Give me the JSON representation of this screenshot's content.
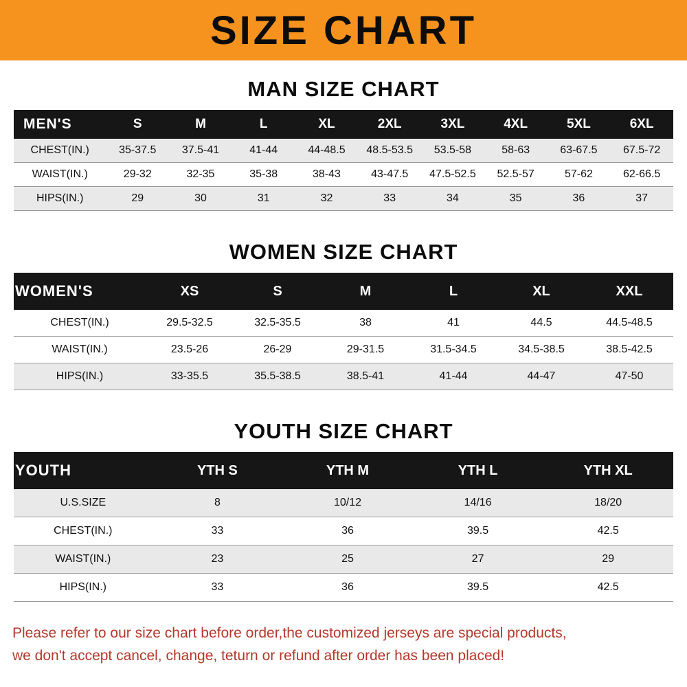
{
  "banner": {
    "title": "SIZE CHART"
  },
  "colors": {
    "banner_bg": "#f6921e",
    "header_bg": "#161616",
    "row_gray": "#e9e9e9",
    "footer_red": "#b4382b"
  },
  "chart_data": [
    {
      "type": "table",
      "id": "men",
      "title": "MAN SIZE CHART",
      "header": [
        "MEN'S",
        "S",
        "M",
        "L",
        "XL",
        "2XL",
        "3XL",
        "4XL",
        "5XL",
        "6XL"
      ],
      "rows": [
        [
          "CHEST(IN.)",
          "35-37.5",
          "37.5-41",
          "41-44",
          "44-48.5",
          "48.5-53.5",
          "53.5-58",
          "58-63",
          "63-67.5",
          "67.5-72"
        ],
        [
          "WAIST(IN.)",
          "29-32",
          "32-35",
          "35-38",
          "38-43",
          "43-47.5",
          "47.5-52.5",
          "52.5-57",
          "57-62",
          "62-66.5"
        ],
        [
          "HIPS(IN.)",
          "29",
          "30",
          "31",
          "32",
          "33",
          "34",
          "35",
          "36",
          "37"
        ]
      ]
    },
    {
      "type": "table",
      "id": "women",
      "title": "WOMEN SIZE CHART",
      "header": [
        "WOMEN'S",
        "XS",
        "S",
        "M",
        "L",
        "XL",
        "XXL"
      ],
      "rows": [
        [
          "CHEST(IN.)",
          "29.5-32.5",
          "32.5-35.5",
          "38",
          "41",
          "44.5",
          "44.5-48.5"
        ],
        [
          "WAIST(IN.)",
          "23.5-26",
          "26-29",
          "29-31.5",
          "31.5-34.5",
          "34.5-38.5",
          "38.5-42.5"
        ],
        [
          "HIPS(IN.)",
          "33-35.5",
          "35.5-38.5",
          "38.5-41",
          "41-44",
          "44-47",
          "47-50"
        ]
      ]
    },
    {
      "type": "table",
      "id": "youth",
      "title": "YOUTH SIZE CHART",
      "header": [
        "YOUTH",
        "YTH S",
        "YTH M",
        "YTH L",
        "YTH XL"
      ],
      "rows": [
        [
          "U.S.SIZE",
          "8",
          "10/12",
          "14/16",
          "18/20"
        ],
        [
          "CHEST(IN.)",
          "33",
          "36",
          "39.5",
          "42.5"
        ],
        [
          "WAIST(IN.)",
          "23",
          "25",
          "27",
          "29"
        ],
        [
          "HIPS(IN.)",
          "33",
          "36",
          "39.5",
          "42.5"
        ]
      ]
    }
  ],
  "footer": {
    "lines": [
      "Please refer to our size chart before order,the customized jerseys are special products,",
      "we don't accept cancel, change, teturn or refund after order has been placed!"
    ]
  }
}
